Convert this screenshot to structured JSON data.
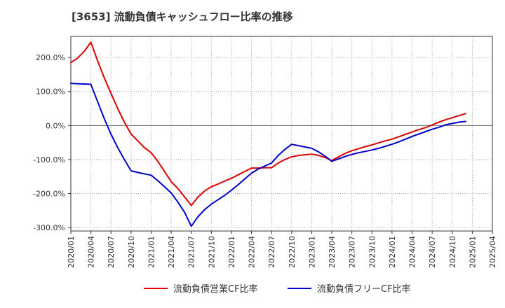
{
  "chart_data": {
    "type": "line",
    "title": "[3653]  流動負債キャッシュフロー比率の推移",
    "xlabel": "",
    "ylabel": "",
    "x_ticks": [
      "2020/01",
      "2020/04",
      "2020/07",
      "2020/10",
      "2021/01",
      "2021/04",
      "2021/07",
      "2021/10",
      "2022/01",
      "2022/04",
      "2022/07",
      "2022/10",
      "2023/01",
      "2023/04",
      "2023/07",
      "2023/10",
      "2024/01",
      "2024/04",
      "2024/07",
      "2024/10",
      "2025/01",
      "2025/04"
    ],
    "y_ticks": [
      "200.0%",
      "100.0%",
      "0.0%",
      "-100.0%",
      "-200.0%",
      "-300.0%"
    ],
    "y_tick_values": [
      200,
      100,
      0,
      -100,
      -200,
      -300
    ],
    "ylim": [
      -310,
      262
    ],
    "xlim": [
      "2020/01",
      "2025/04"
    ],
    "grid": true,
    "legend_position": "bottom",
    "series": [
      {
        "name": "流動負債営業CF比率",
        "color": "#dd0000",
        "points": [
          [
            "2020/01",
            185
          ],
          [
            "2020/02",
            198
          ],
          [
            "2020/03",
            218
          ],
          [
            "2020/04",
            245
          ],
          [
            "2020/05",
            190
          ],
          [
            "2020/06",
            140
          ],
          [
            "2020/07",
            95
          ],
          [
            "2020/08",
            50
          ],
          [
            "2020/09",
            10
          ],
          [
            "2020/10",
            -25
          ],
          [
            "2020/11",
            -45
          ],
          [
            "2020/12",
            -65
          ],
          [
            "2021/01",
            -80
          ],
          [
            "2021/02",
            -105
          ],
          [
            "2021/03",
            -135
          ],
          [
            "2021/04",
            -165
          ],
          [
            "2021/05",
            -185
          ],
          [
            "2021/06",
            -210
          ],
          [
            "2021/07",
            -235
          ],
          [
            "2021/08",
            -210
          ],
          [
            "2021/09",
            -192
          ],
          [
            "2021/10",
            -180
          ],
          [
            "2021/11",
            -172
          ],
          [
            "2021/12",
            -163
          ],
          [
            "2022/01",
            -155
          ],
          [
            "2022/02",
            -145
          ],
          [
            "2022/03",
            -135
          ],
          [
            "2022/04",
            -125
          ],
          [
            "2022/05",
            -125
          ],
          [
            "2022/06",
            -124
          ],
          [
            "2022/07",
            -124
          ],
          [
            "2022/08",
            -110
          ],
          [
            "2022/09",
            -100
          ],
          [
            "2022/10",
            -92
          ],
          [
            "2022/11",
            -88
          ],
          [
            "2022/12",
            -86
          ],
          [
            "2023/01",
            -84
          ],
          [
            "2023/02",
            -88
          ],
          [
            "2023/03",
            -94
          ],
          [
            "2023/04",
            -103
          ],
          [
            "2023/05",
            -92
          ],
          [
            "2023/06",
            -82
          ],
          [
            "2023/07",
            -74
          ],
          [
            "2023/08",
            -68
          ],
          [
            "2023/09",
            -62
          ],
          [
            "2023/10",
            -57
          ],
          [
            "2023/11",
            -51
          ],
          [
            "2023/12",
            -45
          ],
          [
            "2024/01",
            -40
          ],
          [
            "2024/02",
            -33
          ],
          [
            "2024/03",
            -26
          ],
          [
            "2024/04",
            -19
          ],
          [
            "2024/05",
            -12
          ],
          [
            "2024/06",
            -6
          ],
          [
            "2024/07",
            2
          ],
          [
            "2024/08",
            10
          ],
          [
            "2024/09",
            17
          ],
          [
            "2024/10",
            23
          ],
          [
            "2024/11",
            29
          ],
          [
            "2024/12",
            35
          ]
        ]
      },
      {
        "name": "流動負債フリーCF比率",
        "color": "#0000cc",
        "points": [
          [
            "2020/01",
            124
          ],
          [
            "2020/02",
            123
          ],
          [
            "2020/03",
            122
          ],
          [
            "2020/04",
            121
          ],
          [
            "2020/05",
            70
          ],
          [
            "2020/06",
            20
          ],
          [
            "2020/07",
            -25
          ],
          [
            "2020/08",
            -65
          ],
          [
            "2020/09",
            -100
          ],
          [
            "2020/10",
            -133
          ],
          [
            "2020/11",
            -138
          ],
          [
            "2020/12",
            -142
          ],
          [
            "2021/01",
            -146
          ],
          [
            "2021/02",
            -162
          ],
          [
            "2021/03",
            -180
          ],
          [
            "2021/04",
            -198
          ],
          [
            "2021/05",
            -225
          ],
          [
            "2021/06",
            -255
          ],
          [
            "2021/07",
            -296
          ],
          [
            "2021/08",
            -268
          ],
          [
            "2021/09",
            -247
          ],
          [
            "2021/10",
            -231
          ],
          [
            "2021/11",
            -218
          ],
          [
            "2021/12",
            -205
          ],
          [
            "2022/01",
            -190
          ],
          [
            "2022/02",
            -174
          ],
          [
            "2022/03",
            -157
          ],
          [
            "2022/04",
            -140
          ],
          [
            "2022/05",
            -128
          ],
          [
            "2022/06",
            -119
          ],
          [
            "2022/07",
            -110
          ],
          [
            "2022/08",
            -88
          ],
          [
            "2022/09",
            -70
          ],
          [
            "2022/10",
            -55
          ],
          [
            "2022/11",
            -59
          ],
          [
            "2022/12",
            -63
          ],
          [
            "2023/01",
            -67
          ],
          [
            "2023/02",
            -77
          ],
          [
            "2023/03",
            -90
          ],
          [
            "2023/04",
            -105
          ],
          [
            "2023/05",
            -98
          ],
          [
            "2023/06",
            -91
          ],
          [
            "2023/07",
            -85
          ],
          [
            "2023/08",
            -80
          ],
          [
            "2023/09",
            -76
          ],
          [
            "2023/10",
            -72
          ],
          [
            "2023/11",
            -67
          ],
          [
            "2023/12",
            -61
          ],
          [
            "2024/01",
            -55
          ],
          [
            "2024/02",
            -48
          ],
          [
            "2024/03",
            -40
          ],
          [
            "2024/04",
            -32
          ],
          [
            "2024/05",
            -25
          ],
          [
            "2024/06",
            -18
          ],
          [
            "2024/07",
            -11
          ],
          [
            "2024/08",
            -5
          ],
          [
            "2024/09",
            2
          ],
          [
            "2024/10",
            6
          ],
          [
            "2024/11",
            10
          ],
          [
            "2024/12",
            12
          ]
        ]
      }
    ]
  }
}
